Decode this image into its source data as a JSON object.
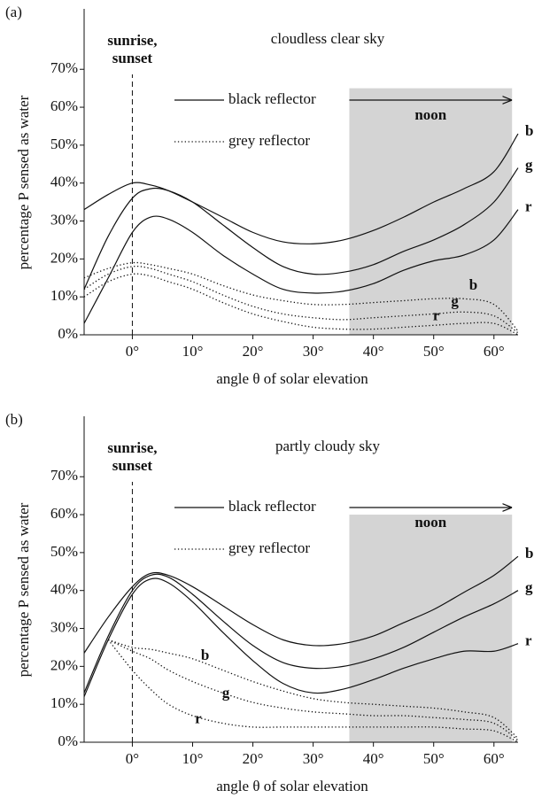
{
  "chart_data": [
    {
      "type": "line",
      "panel_label": "(a)",
      "title": "cloudless clear sky",
      "xlabel": "angle θ of solar elevation",
      "ylabel": "percentage P sensed as water",
      "xlim": [
        -8,
        64
      ],
      "ylim": [
        0,
        85
      ],
      "xticks": [
        {
          "value": 0,
          "label": "0°"
        },
        {
          "value": 10,
          "label": "10°"
        },
        {
          "value": 20,
          "label": "20°"
        },
        {
          "value": 30,
          "label": "30°"
        },
        {
          "value": 40,
          "label": "40°"
        },
        {
          "value": 50,
          "label": "50°"
        },
        {
          "value": 60,
          "label": "60°"
        }
      ],
      "yticks": [
        {
          "value": 0,
          "label": "0%"
        },
        {
          "value": 10,
          "label": "10%"
        },
        {
          "value": 20,
          "label": "20%"
        },
        {
          "value": 30,
          "label": "30%"
        },
        {
          "value": 40,
          "label": "40%"
        },
        {
          "value": 50,
          "label": "50%"
        },
        {
          "value": 60,
          "label": "60%"
        },
        {
          "value": 70,
          "label": "70%"
        }
      ],
      "sunrise_line": {
        "label": [
          "sunrise,",
          "sunset"
        ],
        "x": 0
      },
      "noon_region": {
        "label": "noon",
        "x": [
          36,
          63
        ],
        "y": [
          0,
          65
        ]
      },
      "legend": [
        {
          "label": "black reflector",
          "dash": "solid"
        },
        {
          "label": "grey reflector",
          "dash": "dotted"
        }
      ],
      "x": [
        -8,
        -4,
        0,
        3,
        6,
        10,
        15,
        20,
        25,
        30,
        35,
        40,
        45,
        50,
        55,
        60,
        64
      ],
      "series": [
        {
          "name": "b",
          "color": "#111111",
          "dash": "solid",
          "values": [
            33,
            37,
            40,
            39.5,
            38,
            35,
            31,
            27,
            24.5,
            24,
            25,
            27.5,
            31,
            35,
            38.5,
            43,
            53
          ]
        },
        {
          "name": "g",
          "color": "#111111",
          "dash": "solid",
          "values": [
            12,
            26,
            36,
            38.5,
            38,
            35,
            29,
            23,
            18,
            16,
            16.5,
            18.5,
            22,
            25,
            29,
            35,
            44
          ]
        },
        {
          "name": "r",
          "color": "#111111",
          "dash": "solid",
          "values": [
            3,
            15,
            27,
            31,
            30.5,
            27,
            21,
            16,
            12,
            11,
            11.5,
            13.5,
            17,
            19.5,
            21,
            25,
            33
          ]
        },
        {
          "name": "b",
          "color": "#111111",
          "dash": "dotted",
          "values": [
            15,
            17.5,
            19,
            18.5,
            17.5,
            16,
            13,
            10.5,
            9,
            8,
            8,
            8.5,
            9,
            9.5,
            9.5,
            8,
            1
          ]
        },
        {
          "name": "g",
          "color": "#111111",
          "dash": "dotted",
          "values": [
            12,
            16,
            18,
            17.5,
            16,
            14,
            10.5,
            7.5,
            5.5,
            4.5,
            4,
            4.5,
            5,
            5.5,
            6,
            5,
            0.5
          ]
        },
        {
          "name": "r",
          "color": "#111111",
          "dash": "dotted",
          "values": [
            10,
            14,
            16,
            15.5,
            14,
            12,
            8.5,
            5.5,
            3.5,
            2,
            1.5,
            1.5,
            2,
            2.5,
            3,
            3,
            0
          ]
        }
      ]
    },
    {
      "type": "line",
      "panel_label": "(b)",
      "title": "partly cloudy sky",
      "xlabel": "angle θ of solar elevation",
      "ylabel": "percentage P sensed as water",
      "xlim": [
        -8,
        64
      ],
      "ylim": [
        0,
        85
      ],
      "xticks": [
        {
          "value": 0,
          "label": "0°"
        },
        {
          "value": 10,
          "label": "10°"
        },
        {
          "value": 20,
          "label": "20°"
        },
        {
          "value": 30,
          "label": "30°"
        },
        {
          "value": 40,
          "label": "40°"
        },
        {
          "value": 50,
          "label": "50°"
        },
        {
          "value": 60,
          "label": "60°"
        }
      ],
      "yticks": [
        {
          "value": 0,
          "label": "0%"
        },
        {
          "value": 10,
          "label": "10%"
        },
        {
          "value": 20,
          "label": "20%"
        },
        {
          "value": 30,
          "label": "30%"
        },
        {
          "value": 40,
          "label": "40%"
        },
        {
          "value": 50,
          "label": "50%"
        },
        {
          "value": 60,
          "label": "60%"
        },
        {
          "value": 70,
          "label": "70%"
        }
      ],
      "sunrise_line": {
        "label": [
          "sunrise,",
          "sunset"
        ],
        "x": 0
      },
      "noon_region": {
        "label": "noon",
        "x": [
          36,
          63
        ],
        "y": [
          0,
          60
        ]
      },
      "legend": [
        {
          "label": "black reflector",
          "dash": "solid"
        },
        {
          "label": "grey reflector",
          "dash": "dotted"
        }
      ],
      "x": [
        -8,
        -4,
        0,
        3,
        6,
        10,
        15,
        20,
        25,
        30,
        35,
        40,
        45,
        50,
        55,
        60,
        64
      ],
      "series": [
        {
          "name": "b",
          "color": "#111111",
          "dash": "solid",
          "values": [
            23.5,
            33,
            41,
            44.5,
            44,
            41,
            36,
            31,
            27,
            25.5,
            26,
            28,
            31.5,
            35,
            39.5,
            44,
            49
          ]
        },
        {
          "name": "g",
          "color": "#111111",
          "dash": "solid",
          "values": [
            13,
            28,
            40,
            44,
            43.5,
            39,
            32,
            25.5,
            21,
            19.5,
            20,
            22,
            25,
            29,
            33,
            36.5,
            40
          ]
        },
        {
          "name": "r",
          "color": "#111111",
          "dash": "solid",
          "values": [
            12,
            27,
            39,
            43,
            42,
            37,
            29,
            21.5,
            15.5,
            13,
            14,
            16.5,
            19.5,
            22,
            24,
            24,
            26
          ]
        },
        {
          "name": "b",
          "color": "#111111",
          "dash": "dotted",
          "values": [
            null,
            27,
            25,
            24.5,
            23.5,
            22,
            19,
            16,
            13.5,
            11.5,
            10.5,
            10,
            9.5,
            9,
            8,
            6.5,
            1
          ]
        },
        {
          "name": "g",
          "color": "#111111",
          "dash": "dotted",
          "values": [
            null,
            27,
            24,
            22,
            19,
            16,
            13,
            10.5,
            9,
            8,
            7.5,
            7,
            7,
            6.5,
            6,
            5,
            0.5
          ]
        },
        {
          "name": "r",
          "color": "#111111",
          "dash": "dotted",
          "values": [
            null,
            27,
            19,
            14,
            10,
            7,
            5,
            4,
            4,
            4,
            4,
            4,
            4,
            4,
            3.5,
            3,
            0
          ]
        }
      ]
    }
  ]
}
